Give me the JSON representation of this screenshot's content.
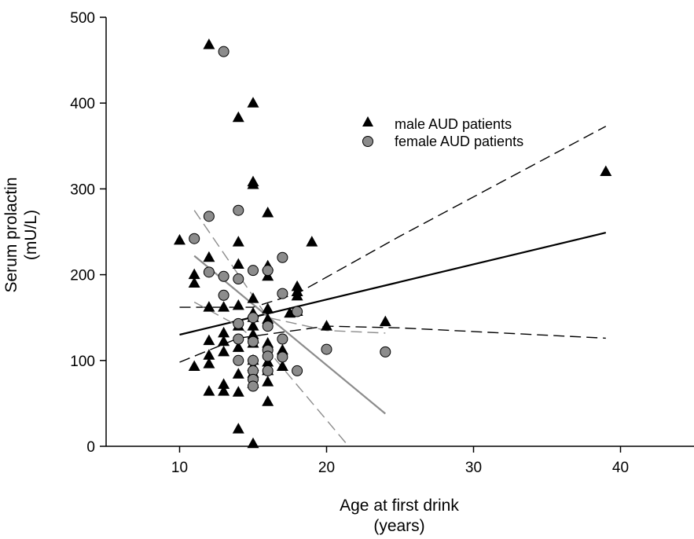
{
  "chart_data": {
    "type": "scatter",
    "xlabel": [
      "Age at first drink",
      "(years)"
    ],
    "ylabel": [
      "Serum prolactin",
      "(mU/L)"
    ],
    "xlim": [
      5,
      45
    ],
    "ylim": [
      0,
      500
    ],
    "xticks": [
      10,
      20,
      30,
      40
    ],
    "yticks": [
      0,
      100,
      200,
      300,
      400,
      500
    ],
    "grid": false,
    "legend_position": "top-right",
    "series": [
      {
        "name": "male AUD patients",
        "marker": "triangle",
        "color": "#000000",
        "points": [
          [
            10,
            240
          ],
          [
            11,
            200
          ],
          [
            11,
            190
          ],
          [
            11,
            93
          ],
          [
            12,
            468
          ],
          [
            12,
            220
          ],
          [
            12,
            162
          ],
          [
            12,
            123
          ],
          [
            12,
            106
          ],
          [
            12,
            96
          ],
          [
            12,
            64
          ],
          [
            13,
            162
          ],
          [
            13,
            132
          ],
          [
            13,
            122
          ],
          [
            13,
            110
          ],
          [
            13,
            72
          ],
          [
            13,
            64
          ],
          [
            14,
            383
          ],
          [
            14,
            238
          ],
          [
            14,
            212
          ],
          [
            14,
            164
          ],
          [
            14,
            140
          ],
          [
            14,
            115
          ],
          [
            14,
            84
          ],
          [
            14,
            63
          ],
          [
            14,
            20
          ],
          [
            15,
            400
          ],
          [
            15,
            308
          ],
          [
            15,
            305
          ],
          [
            15,
            172
          ],
          [
            15,
            155
          ],
          [
            15,
            150
          ],
          [
            15,
            140
          ],
          [
            15,
            130
          ],
          [
            15,
            120
          ],
          [
            15,
            100
          ],
          [
            15,
            93
          ],
          [
            15,
            85
          ],
          [
            15,
            73
          ],
          [
            15,
            3
          ],
          [
            16,
            272
          ],
          [
            16,
            210
          ],
          [
            16,
            198
          ],
          [
            16,
            160
          ],
          [
            16,
            148
          ],
          [
            16,
            120
          ],
          [
            16,
            98
          ],
          [
            16,
            88
          ],
          [
            16,
            75
          ],
          [
            16,
            52
          ],
          [
            17,
            112
          ],
          [
            17,
            93
          ],
          [
            17.5,
            155
          ],
          [
            18,
            186
          ],
          [
            18,
            180
          ],
          [
            18,
            175
          ],
          [
            18,
            157
          ],
          [
            19,
            238
          ],
          [
            20,
            140
          ],
          [
            24,
            145
          ],
          [
            39,
            320
          ]
        ]
      },
      {
        "name": "female AUD patients",
        "marker": "circle",
        "color": "#8c8c8c",
        "points": [
          [
            11,
            242
          ],
          [
            12,
            268
          ],
          [
            12,
            203
          ],
          [
            13,
            460
          ],
          [
            13,
            198
          ],
          [
            13,
            176
          ],
          [
            14,
            275
          ],
          [
            14,
            195
          ],
          [
            14,
            143
          ],
          [
            14,
            125
          ],
          [
            14,
            100
          ],
          [
            15,
            205
          ],
          [
            15,
            150
          ],
          [
            15,
            122
          ],
          [
            15,
            100
          ],
          [
            15,
            88
          ],
          [
            15,
            78
          ],
          [
            15,
            70
          ],
          [
            16,
            205
          ],
          [
            16,
            140
          ],
          [
            16,
            112
          ],
          [
            16,
            105
          ],
          [
            16,
            88
          ],
          [
            17,
            220
          ],
          [
            17,
            178
          ],
          [
            17,
            125
          ],
          [
            17,
            104
          ],
          [
            18,
            88
          ],
          [
            18,
            157
          ],
          [
            20,
            113
          ],
          [
            24,
            110
          ]
        ]
      }
    ],
    "regression_lines": [
      {
        "name": "male fit",
        "style": "solid",
        "color": "#000000",
        "points": [
          [
            10,
            130
          ],
          [
            39,
            249
          ]
        ]
      },
      {
        "name": "male CI upper",
        "style": "dashed",
        "color": "#000000",
        "points": [
          [
            10,
            162
          ],
          [
            15,
            162
          ],
          [
            18,
            178
          ],
          [
            25,
            245
          ],
          [
            39,
            373
          ]
        ]
      },
      {
        "name": "male CI lower",
        "style": "dashed",
        "color": "#000000",
        "points": [
          [
            10,
            98
          ],
          [
            14,
            126
          ],
          [
            20,
            140
          ],
          [
            25,
            138
          ],
          [
            39,
            126
          ]
        ]
      },
      {
        "name": "female fit",
        "style": "solid",
        "color": "#8c8c8c",
        "points": [
          [
            11,
            222
          ],
          [
            24,
            38
          ]
        ]
      },
      {
        "name": "female CI upper",
        "style": "dashed",
        "color": "#8c8c8c",
        "points": [
          [
            11,
            275
          ],
          [
            16,
            150
          ],
          [
            20,
            135
          ],
          [
            24,
            132
          ]
        ]
      },
      {
        "name": "female CI lower",
        "style": "dashed",
        "color": "#8c8c8c",
        "points": [
          [
            11,
            168
          ],
          [
            14,
            140
          ],
          [
            16,
            112
          ],
          [
            21.5,
            0
          ]
        ]
      }
    ]
  }
}
